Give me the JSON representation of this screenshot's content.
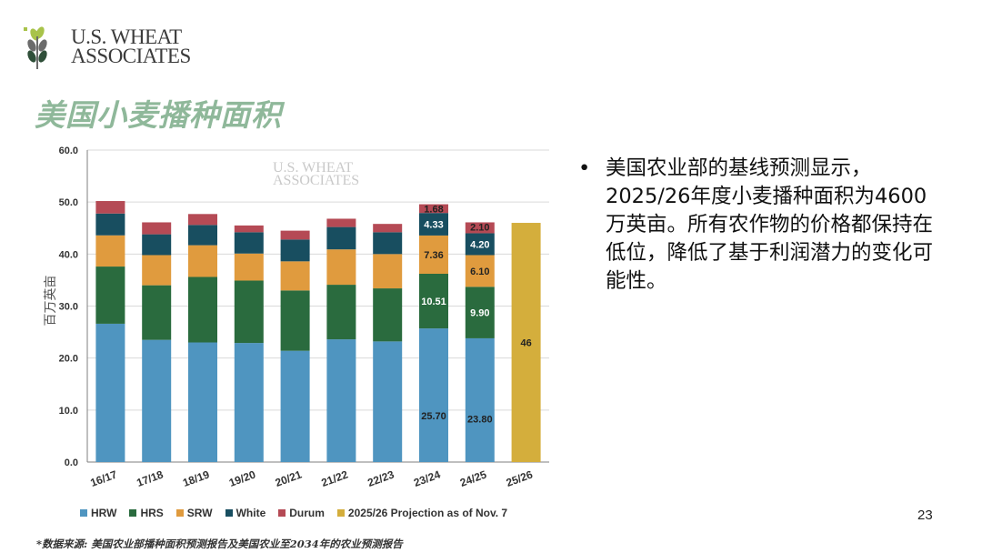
{
  "logo": {
    "line1": "U.S. WHEAT",
    "line2": "ASSOCIATES"
  },
  "title": "美国小麦播种面积",
  "watermark": {
    "line1": "U.S. WHEAT",
    "line2": "ASSOCIATES"
  },
  "bullet": {
    "marker": "•",
    "text": "美国农业部的基线预测显示，2025/26年度小麦播种面积为4600万英亩。所有农作物的价格都保持在低位，降低了基于利润潜力的变化可能性。"
  },
  "page_number": "23",
  "footnote": "*数据来源: 美国农业部播种面积预测报告及美国农业至2034年的农业预测报告",
  "colors": {
    "HRW": "#4f95c0",
    "HRS": "#2a6b3e",
    "SRW": "#e09b3e",
    "White": "#184e60",
    "Durum": "#b54a55",
    "Projection": "#d4ae3c",
    "grid": "#d9d9d9",
    "axis": "#7f7f7f",
    "title": "#8fb89a"
  },
  "chart_data": {
    "type": "bar",
    "stacked": true,
    "ylabel": "百万英亩",
    "ylim": [
      0,
      60
    ],
    "yticks": [
      "0.0",
      "10.0",
      "20.0",
      "30.0",
      "40.0",
      "50.0",
      "60.0"
    ],
    "categories": [
      "16/17",
      "17/18",
      "18/19",
      "19/20",
      "20/21",
      "21/22",
      "22/23",
      "23/24",
      "24/25",
      "25/26"
    ],
    "series": [
      {
        "name": "HRW",
        "values": [
          26.6,
          23.5,
          23.0,
          22.9,
          21.4,
          23.6,
          23.2,
          25.7,
          23.8,
          null
        ]
      },
      {
        "name": "HRS",
        "values": [
          11.0,
          10.5,
          12.6,
          12.0,
          11.6,
          10.5,
          10.2,
          10.51,
          9.9,
          null
        ]
      },
      {
        "name": "SRW",
        "values": [
          6.0,
          5.8,
          6.1,
          5.2,
          5.6,
          6.8,
          6.6,
          7.36,
          6.1,
          null
        ]
      },
      {
        "name": "White",
        "values": [
          4.2,
          4.0,
          3.9,
          4.1,
          4.2,
          4.3,
          4.2,
          4.33,
          4.2,
          null
        ]
      },
      {
        "name": "Durum",
        "values": [
          2.4,
          2.3,
          2.1,
          1.3,
          1.7,
          1.6,
          1.6,
          1.68,
          2.1,
          null
        ]
      },
      {
        "name": "2025/26 Projection as of Nov. 7",
        "values": [
          null,
          null,
          null,
          null,
          null,
          null,
          null,
          null,
          null,
          46
        ]
      }
    ],
    "labels": [
      {
        "category": "23/24",
        "series": "HRW",
        "text": "25.70"
      },
      {
        "category": "23/24",
        "series": "HRS",
        "text": "10.51"
      },
      {
        "category": "23/24",
        "series": "SRW",
        "text": "7.36"
      },
      {
        "category": "23/24",
        "series": "White",
        "text": "4.33"
      },
      {
        "category": "23/24",
        "series": "Durum",
        "text": "1.68"
      },
      {
        "category": "24/25",
        "series": "HRW",
        "text": "23.80"
      },
      {
        "category": "24/25",
        "series": "HRS",
        "text": "9.90"
      },
      {
        "category": "24/25",
        "series": "SRW",
        "text": "6.10"
      },
      {
        "category": "24/25",
        "series": "White",
        "text": "4.20"
      },
      {
        "category": "24/25",
        "series": "Durum",
        "text": "2.10"
      },
      {
        "category": "25/26",
        "series": "2025/26 Projection as of Nov. 7",
        "text": "46"
      }
    ],
    "legend": [
      "HRW",
      "HRS",
      "SRW",
      "White",
      "Durum",
      "2025/26 Projection as of Nov. 7"
    ]
  }
}
